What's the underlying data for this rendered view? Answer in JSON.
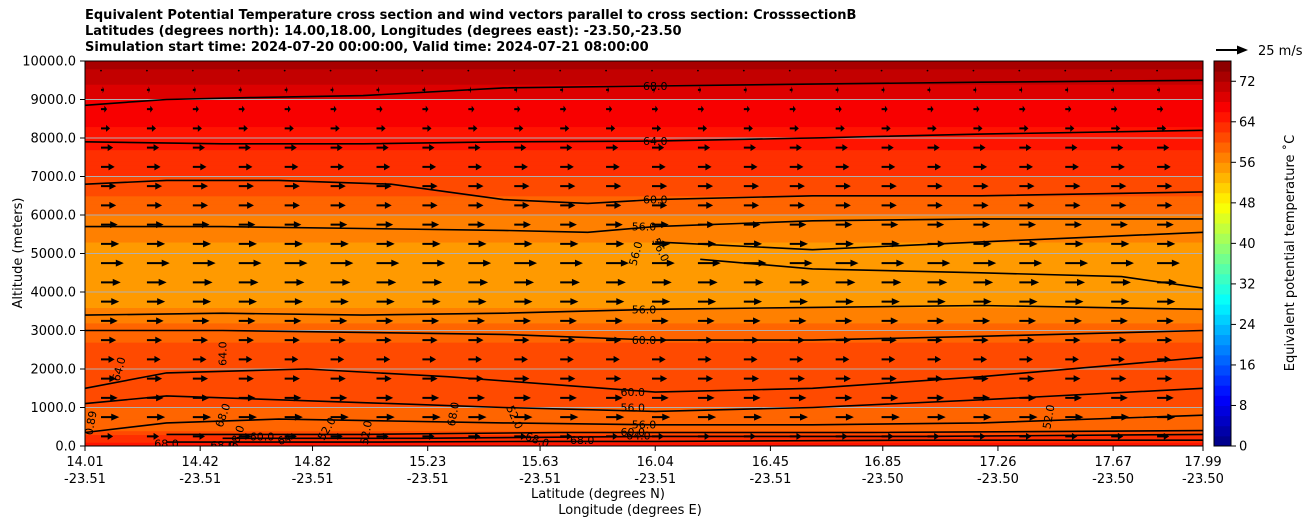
{
  "chart_data": {
    "type": "heatmap",
    "title_lines": [
      "Equivalent Potential Temperature cross section and wind vectors parallel to cross section: CrosssectionB",
      "Latitudes (degrees north): 14.00,18.00, Longitudes (degrees east): -23.50,-23.50",
      "Simulation start time: 2024-07-20 00:00:00, Valid time: 2024-07-21 08:00:00"
    ],
    "xlabel_lines": [
      "Latitude (degrees N)",
      "Longitude (degrees E)"
    ],
    "ylabel": "Altitude (meters)",
    "x_ticks": [
      {
        "lat": "14.01",
        "lon": "-23.51"
      },
      {
        "lat": "14.42",
        "lon": "-23.51"
      },
      {
        "lat": "14.82",
        "lon": "-23.51"
      },
      {
        "lat": "15.23",
        "lon": "-23.51"
      },
      {
        "lat": "15.63",
        "lon": "-23.51"
      },
      {
        "lat": "16.04",
        "lon": "-23.51"
      },
      {
        "lat": "16.45",
        "lon": "-23.51"
      },
      {
        "lat": "16.85",
        "lon": "-23.50"
      },
      {
        "lat": "17.26",
        "lon": "-23.50"
      },
      {
        "lat": "17.67",
        "lon": "-23.50"
      },
      {
        "lat": "17.99",
        "lon": "-23.50"
      }
    ],
    "x_range": [
      14.01,
      17.99
    ],
    "y_ticks": [
      "0.0",
      "1000.0",
      "2000.0",
      "3000.0",
      "4000.0",
      "5000.0",
      "6000.0",
      "7000.0",
      "8000.0",
      "9000.0",
      "10000.0"
    ],
    "y_range": [
      0,
      10000
    ],
    "colorbar": {
      "label": "Equivalent potential temperature $^\\circ$C",
      "label_text": "Equivalent potential temperature ˚C",
      "ticks": [
        "0",
        "8",
        "16",
        "24",
        "32",
        "40",
        "48",
        "56",
        "64",
        "72"
      ],
      "range": [
        0,
        76
      ],
      "colormap": "jet"
    },
    "quiver_key": "25 m/s",
    "grid": true,
    "field_profile": [
      {
        "altitude": 0,
        "value": 66
      },
      {
        "altitude": 500,
        "value": 58
      },
      {
        "altitude": 1000,
        "value": 60
      },
      {
        "altitude": 2000,
        "value": 62
      },
      {
        "altitude": 3000,
        "value": 59
      },
      {
        "altitude": 4000,
        "value": 54
      },
      {
        "altitude": 5000,
        "value": 55
      },
      {
        "altitude": 6000,
        "value": 58
      },
      {
        "altitude": 7000,
        "value": 62
      },
      {
        "altitude": 8000,
        "value": 65
      },
      {
        "altitude": 9000,
        "value": 68
      },
      {
        "altitude": 10000,
        "value": 73
      }
    ],
    "contours": [
      {
        "label": "68.0",
        "points": [
          [
            14.01,
            8850
          ],
          [
            14.2,
            8950
          ],
          [
            14.3,
            9000
          ],
          [
            14.6,
            9050
          ],
          [
            15,
            9100
          ],
          [
            15.5,
            9300
          ],
          [
            16.04,
            9350
          ],
          [
            16.6,
            9400
          ],
          [
            17.2,
            9450
          ],
          [
            17.99,
            9500
          ]
        ]
      },
      {
        "label": "64.0",
        "points": [
          [
            14.01,
            7900
          ],
          [
            14.5,
            7850
          ],
          [
            15,
            7850
          ],
          [
            15.5,
            7900
          ],
          [
            16.04,
            7920
          ],
          [
            16.6,
            8000
          ],
          [
            17.2,
            8100
          ],
          [
            17.99,
            8200
          ]
        ]
      },
      {
        "label": "60.0",
        "points": [
          [
            14.01,
            6800
          ],
          [
            14.3,
            6900
          ],
          [
            14.7,
            6900
          ],
          [
            15.1,
            6800
          ],
          [
            15.5,
            6400
          ],
          [
            15.8,
            6300
          ],
          [
            16.04,
            6400
          ],
          [
            16.6,
            6500
          ],
          [
            17.2,
            6500
          ],
          [
            17.99,
            6600
          ]
        ]
      },
      {
        "label": "56.0",
        "points": [
          [
            14.01,
            5700
          ],
          [
            14.5,
            5700
          ],
          [
            15,
            5650
          ],
          [
            15.5,
            5600
          ],
          [
            15.8,
            5550
          ],
          [
            16.04,
            5700
          ],
          [
            16.6,
            5850
          ],
          [
            17.2,
            5900
          ],
          [
            17.99,
            5900
          ]
        ]
      },
      {
        "label": "",
        "points": [
          [
            16.04,
            5300
          ],
          [
            16.6,
            5100
          ],
          [
            17.2,
            5300
          ],
          [
            17.99,
            5550
          ]
        ]
      },
      {
        "label": "",
        "points": [
          [
            16.2,
            4850
          ],
          [
            16.6,
            4600
          ],
          [
            17.2,
            4500
          ],
          [
            17.7,
            4400
          ],
          [
            17.99,
            4100
          ]
        ]
      },
      {
        "label": "56.0",
        "points": [
          [
            14.01,
            3400
          ],
          [
            14.5,
            3450
          ],
          [
            15,
            3400
          ],
          [
            15.5,
            3450
          ],
          [
            16.04,
            3550
          ],
          [
            16.6,
            3600
          ],
          [
            17.2,
            3650
          ],
          [
            17.99,
            3550
          ]
        ]
      },
      {
        "label": "60.0",
        "points": [
          [
            14.01,
            3000
          ],
          [
            14.5,
            3000
          ],
          [
            15,
            2950
          ],
          [
            15.5,
            2900
          ],
          [
            16.04,
            2750
          ],
          [
            16.6,
            2750
          ],
          [
            17.2,
            2850
          ],
          [
            17.99,
            3000
          ]
        ]
      },
      {
        "label": "60.0",
        "points": [
          [
            14.01,
            1500
          ],
          [
            14.3,
            1900
          ],
          [
            14.8,
            2000
          ],
          [
            15.3,
            1800
          ],
          [
            16.04,
            1400
          ],
          [
            16.6,
            1500
          ],
          [
            17.2,
            1800
          ],
          [
            17.99,
            2300
          ]
        ]
      },
      {
        "label": "56.0",
        "points": [
          [
            14.01,
            1100
          ],
          [
            14.3,
            1300
          ],
          [
            14.7,
            1200
          ],
          [
            15.1,
            1100
          ],
          [
            15.5,
            1000
          ],
          [
            16.04,
            900
          ],
          [
            16.6,
            1000
          ],
          [
            17.2,
            1200
          ],
          [
            17.99,
            1500
          ]
        ]
      },
      {
        "label": "56.0",
        "points": [
          [
            14.01,
            350
          ],
          [
            14.3,
            600
          ],
          [
            14.7,
            700
          ],
          [
            15.1,
            650
          ],
          [
            15.5,
            600
          ],
          [
            16.04,
            550
          ],
          [
            16.6,
            550
          ],
          [
            17.2,
            600
          ],
          [
            17.99,
            800
          ]
        ]
      },
      {
        "label": "60.0",
        "points": [
          [
            14.3,
            300
          ],
          [
            15,
            300
          ],
          [
            15.7,
            350
          ],
          [
            16.04,
            350
          ],
          [
            16.8,
            350
          ],
          [
            17.99,
            400
          ]
        ]
      },
      {
        "label": "64.0",
        "points": [
          [
            14.5,
            200
          ],
          [
            15.2,
            200
          ],
          [
            16.04,
            250
          ],
          [
            17,
            250
          ],
          [
            17.99,
            300
          ]
        ]
      },
      {
        "label": "68.0",
        "points": [
          [
            14.3,
            100
          ],
          [
            15,
            100
          ],
          [
            15.6,
            120
          ],
          [
            16.04,
            120
          ],
          [
            17,
            150
          ],
          [
            17.99,
            150
          ]
        ]
      }
    ],
    "contour_labels": [
      {
        "text": "68.0",
        "lat": 16.04,
        "alt": 9350,
        "rot": 0
      },
      {
        "text": "64.0",
        "lat": 16.04,
        "alt": 7920,
        "rot": 0
      },
      {
        "text": "60.0",
        "lat": 16.04,
        "alt": 6400,
        "rot": 0
      },
      {
        "text": "56.0",
        "lat": 16.0,
        "alt": 5700,
        "rot": 0
      },
      {
        "text": "56.0",
        "lat": 15.97,
        "alt": 5000,
        "rot": -75
      },
      {
        "text": "56.0",
        "lat": 16.06,
        "alt": 5100,
        "rot": 65
      },
      {
        "text": "56.0",
        "lat": 16.0,
        "alt": 3550,
        "rot": 0
      },
      {
        "text": "60.0",
        "lat": 16.0,
        "alt": 2750,
        "rot": 0
      },
      {
        "text": "60.0",
        "lat": 15.96,
        "alt": 1400,
        "rot": 0
      },
      {
        "text": "56.0",
        "lat": 15.96,
        "alt": 1000,
        "rot": 0
      },
      {
        "text": "56.0",
        "lat": 16.0,
        "alt": 560,
        "rot": 0
      },
      {
        "text": "60.0",
        "lat": 15.96,
        "alt": 370,
        "rot": 0
      },
      {
        "text": "64.0",
        "lat": 15.98,
        "alt": 270,
        "rot": 0
      },
      {
        "text": "64.0",
        "lat": 14.13,
        "alt": 2000,
        "rot": -75
      },
      {
        "text": "64.0",
        "lat": 14.5,
        "alt": 2400,
        "rot": -90
      },
      {
        "text": "68.0",
        "lat": 14.5,
        "alt": 800,
        "rot": -70
      },
      {
        "text": "68.0",
        "lat": 14.5,
        "alt": 30,
        "rot": 0
      },
      {
        "text": "68.0",
        "lat": 14.55,
        "alt": 230,
        "rot": -70
      },
      {
        "text": "60.0",
        "lat": 14.64,
        "alt": 250,
        "rot": 0
      },
      {
        "text": "64",
        "lat": 14.72,
        "alt": 180,
        "rot": -20
      },
      {
        "text": "68.0",
        "lat": 15.32,
        "alt": 830,
        "rot": -80
      },
      {
        "text": "52.0",
        "lat": 15.54,
        "alt": 750,
        "rot": 65
      },
      {
        "text": "68.0",
        "lat": 15.62,
        "alt": 160,
        "rot": 20
      },
      {
        "text": "68.0",
        "lat": 15.78,
        "alt": 160,
        "rot": 0
      },
      {
        "text": "52.0",
        "lat": 15.01,
        "alt": 350,
        "rot": -80
      },
      {
        "text": "52.0",
        "lat": 14.87,
        "alt": 450,
        "rot": -60
      },
      {
        "text": "52.0",
        "lat": 17.44,
        "alt": 760,
        "rot": -80
      },
      {
        "text": "0.89",
        "lat": 14.03,
        "alt": 600,
        "rot": -80
      },
      {
        "text": "68.0",
        "lat": 14.3,
        "alt": 60,
        "rot": 0
      }
    ],
    "wind_rows": [
      {
        "altitude": 9750,
        "u": 0.5
      },
      {
        "altitude": 9250,
        "u": 2
      },
      {
        "altitude": 8750,
        "u": 4
      },
      {
        "altitude": 8250,
        "u": 6
      },
      {
        "altitude": 7750,
        "u": 8
      },
      {
        "altitude": 7250,
        "u": 9
      },
      {
        "altitude": 6750,
        "u": 10
      },
      {
        "altitude": 6250,
        "u": 10
      },
      {
        "altitude": 5750,
        "u": 11
      },
      {
        "altitude": 5250,
        "u": 12
      },
      {
        "altitude": 4750,
        "u": 15
      },
      {
        "altitude": 4250,
        "u": 13
      },
      {
        "altitude": 3750,
        "u": 12
      },
      {
        "altitude": 3250,
        "u": 11
      },
      {
        "altitude": 2750,
        "u": 10
      },
      {
        "altitude": 2250,
        "u": 9
      },
      {
        "altitude": 1750,
        "u": 10
      },
      {
        "altitude": 1250,
        "u": 11
      },
      {
        "altitude": 750,
        "u": 12
      },
      {
        "altitude": 250,
        "u": 8
      }
    ],
    "wind_lat_count": 24
  }
}
